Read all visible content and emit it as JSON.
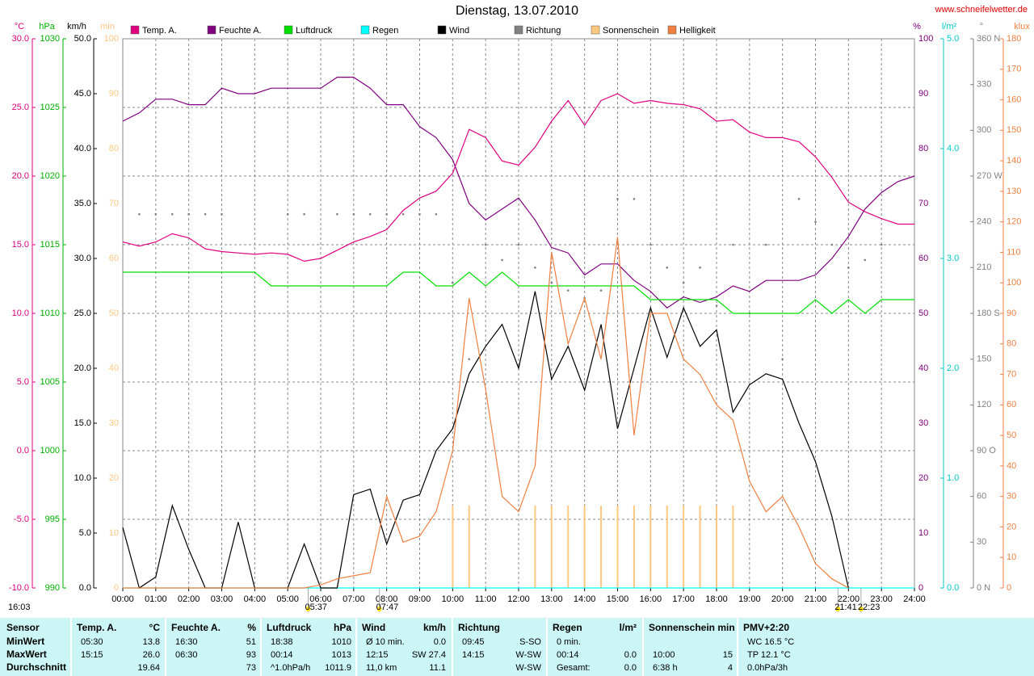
{
  "chart_data": {
    "type": "line",
    "title": "Dienstag, 13.07.2010",
    "site": "www.schneifelwetter.de",
    "xlim": [
      0,
      24
    ],
    "xticks": [
      {
        "value": 0,
        "label": "00:00"
      },
      {
        "value": 1,
        "label": "01:00"
      },
      {
        "value": 2,
        "label": "02:00"
      },
      {
        "value": 3,
        "label": "03:00"
      },
      {
        "value": 4,
        "label": "04:00"
      },
      {
        "value": 5,
        "label": "05:00"
      },
      {
        "value": 6,
        "label": "06:00"
      },
      {
        "value": 7,
        "label": "07:00"
      },
      {
        "value": 8,
        "label": "08:00"
      },
      {
        "value": 9,
        "label": "09:00"
      },
      {
        "value": 10,
        "label": "10:00"
      },
      {
        "value": 11,
        "label": "11:00"
      },
      {
        "value": 12,
        "label": "12:00"
      },
      {
        "value": 13,
        "label": "13:00"
      },
      {
        "value": 14,
        "label": "14:00"
      },
      {
        "value": 15,
        "label": "15:00"
      },
      {
        "value": 16,
        "label": "16:00"
      },
      {
        "value": 17,
        "label": "17:00"
      },
      {
        "value": 18,
        "label": "18:00"
      },
      {
        "value": 19,
        "label": "19:00"
      },
      {
        "value": 20,
        "label": "20:00"
      },
      {
        "value": 21,
        "label": "21:00"
      },
      {
        "value": 22,
        "label": "22:00"
      },
      {
        "value": 23,
        "label": "23:00"
      },
      {
        "value": 24,
        "label": "24:00"
      }
    ],
    "grid": true,
    "axes": [
      {
        "unit": "°C",
        "side": "left",
        "color": "#e0007f",
        "lim": [
          -10,
          30
        ],
        "ticks": [
          {
            "value": -10,
            "label": "-10.0"
          },
          {
            "value": -5,
            "label": "-5.0"
          },
          {
            "value": 0,
            "label": "0.0"
          },
          {
            "value": 5,
            "label": "5.0"
          },
          {
            "value": 10,
            "label": "10.0"
          },
          {
            "value": 15,
            "label": "15.0"
          },
          {
            "value": 20,
            "label": "20.0"
          },
          {
            "value": 25,
            "label": "25.0"
          },
          {
            "value": 30,
            "label": "30.0"
          }
        ]
      },
      {
        "unit": "hPa",
        "side": "left",
        "color": "#00b000",
        "lim": [
          990,
          1030
        ],
        "ticks": [
          990,
          995,
          1000,
          1005,
          1010,
          1015,
          1020,
          1025,
          1030
        ]
      },
      {
        "unit": "km/h",
        "side": "left",
        "color": "#000000",
        "lim": [
          0,
          50
        ],
        "ticks": [
          {
            "value": 0,
            "label": "0.0"
          },
          {
            "value": 5,
            "label": "5.0"
          },
          {
            "value": 10,
            "label": "10.0"
          },
          {
            "value": 15,
            "label": "15.0"
          },
          {
            "value": 20,
            "label": "20.0"
          },
          {
            "value": 25,
            "label": "25.0"
          },
          {
            "value": 30,
            "label": "30.0"
          },
          {
            "value": 35,
            "label": "35.0"
          },
          {
            "value": 40,
            "label": "40.0"
          },
          {
            "value": 45,
            "label": "45.0"
          },
          {
            "value": 50,
            "label": "50.0"
          }
        ]
      },
      {
        "unit": "min",
        "side": "left",
        "color": "#ffc880",
        "lim": [
          0,
          100
        ],
        "ticks": [
          0,
          10,
          20,
          30,
          40,
          50,
          60,
          70,
          80,
          90,
          100
        ]
      },
      {
        "unit": "%",
        "side": "right",
        "color": "#800080",
        "lim": [
          0,
          100
        ],
        "ticks": [
          0,
          10,
          20,
          30,
          40,
          50,
          60,
          70,
          80,
          90,
          100
        ]
      },
      {
        "unit": "l/m²",
        "side": "right",
        "color": "#00c8c8",
        "lim": [
          0,
          5
        ],
        "ticks": [
          {
            "value": 0,
            "label": "0.0"
          },
          {
            "value": 1,
            "label": "1.0"
          },
          {
            "value": 2,
            "label": "2.0"
          },
          {
            "value": 3,
            "label": "3.0"
          },
          {
            "value": 4,
            "label": "4.0"
          },
          {
            "value": 5,
            "label": "5.0"
          }
        ]
      },
      {
        "unit": "°",
        "side": "right",
        "color": "#808080",
        "lim": [
          0,
          360
        ],
        "ticks": [
          {
            "value": 0,
            "label": "0   N"
          },
          30,
          60,
          {
            "value": 90,
            "label": "90   O"
          },
          120,
          150,
          {
            "value": 180,
            "label": "180 S"
          },
          210,
          240,
          {
            "value": 270,
            "label": "270 W"
          },
          300,
          330,
          {
            "value": 360,
            "label": "360 N"
          }
        ]
      },
      {
        "unit": "klux",
        "side": "right",
        "color": "#f08040",
        "lim": [
          0,
          180
        ],
        "ticks": [
          0,
          10,
          20,
          30,
          40,
          50,
          60,
          70,
          80,
          90,
          100,
          110,
          120,
          130,
          140,
          150,
          160,
          170,
          180
        ]
      }
    ],
    "x": [
      0,
      0.5,
      1,
      1.5,
      2,
      2.5,
      3,
      3.5,
      4,
      4.5,
      5,
      5.5,
      6,
      6.5,
      7,
      7.5,
      8,
      8.5,
      9,
      9.5,
      10,
      10.5,
      11,
      11.5,
      12,
      12.5,
      13,
      13.5,
      14,
      14.5,
      15,
      15.5,
      16,
      16.5,
      17,
      17.5,
      18,
      18.5,
      19,
      19.5,
      20,
      20.5,
      21,
      21.5,
      22,
      22.5,
      23,
      23.5,
      24
    ],
    "series": [
      {
        "name": "Temp. A.",
        "color": "#e0007f",
        "style": "line",
        "axis": 0,
        "values": [
          15.2,
          14.9,
          15.2,
          15.8,
          15.5,
          14.7,
          14.5,
          14.4,
          14.3,
          14.4,
          14.3,
          13.8,
          14.0,
          14.6,
          15.2,
          15.6,
          16.1,
          17.5,
          18.4,
          18.9,
          20.2,
          23.4,
          22.8,
          21.1,
          20.8,
          22.1,
          24.0,
          25.5,
          23.7,
          25.5,
          26.0,
          25.3,
          25.5,
          25.3,
          25.2,
          24.9,
          24.0,
          24.1,
          23.2,
          22.8,
          22.8,
          22.5,
          21.4,
          19.9,
          18.1,
          17.4,
          16.9,
          16.5,
          16.5
        ]
      },
      {
        "name": "Feuchte A.",
        "color": "#800080",
        "style": "line",
        "axis": 4,
        "values": [
          85,
          86.5,
          89,
          89,
          88,
          88,
          91,
          90,
          90,
          91,
          91,
          91,
          91,
          93,
          93,
          91,
          88,
          88,
          84,
          82,
          78,
          70,
          67,
          69,
          71,
          67,
          62,
          61,
          57,
          59,
          59,
          56,
          54,
          51,
          53,
          52,
          53,
          55,
          54,
          56,
          56,
          56,
          57,
          60,
          64,
          69,
          72,
          74,
          75
        ]
      },
      {
        "name": "Luftdruck",
        "color": "#00e000",
        "style": "line",
        "axis": 1,
        "values": [
          1013,
          1013,
          1013,
          1013,
          1013,
          1013,
          1013,
          1013,
          1013,
          1012,
          1012,
          1012,
          1012,
          1012,
          1012,
          1012,
          1012,
          1013,
          1013,
          1012,
          1012,
          1013,
          1012,
          1013,
          1012,
          1012,
          1012,
          1012,
          1012,
          1012,
          1012,
          1012,
          1011,
          1011,
          1011,
          1011,
          1011,
          1010,
          1010,
          1010,
          1010,
          1010,
          1011,
          1010,
          1011,
          1010,
          1011,
          1011,
          1011
        ]
      },
      {
        "name": "Regen",
        "color": "#00ffff",
        "style": "line",
        "axis": 5,
        "values": [
          0,
          0,
          0,
          0,
          0,
          0,
          0,
          0,
          0,
          0,
          0,
          0,
          0,
          0,
          0,
          0,
          0,
          0,
          0,
          0,
          0,
          0,
          0,
          0,
          0,
          0,
          0,
          0,
          0,
          0,
          0,
          0,
          0,
          0,
          0,
          0,
          0,
          0,
          0,
          0,
          0,
          0,
          0,
          0,
          0,
          0,
          0,
          0,
          0
        ]
      },
      {
        "name": "Wind",
        "color": "#000000",
        "style": "line",
        "axis": 2,
        "values": [
          5.5,
          0,
          1,
          7.5,
          3.5,
          0,
          0,
          6,
          0,
          0,
          0,
          4,
          0,
          0,
          8.5,
          9,
          4,
          8,
          8.5,
          12.5,
          14.5,
          19.5,
          22,
          24,
          20,
          27,
          19,
          22,
          18,
          24,
          14.5,
          20,
          25.5,
          21,
          25.5,
          22,
          23.5,
          16,
          18.5,
          19.5,
          19,
          15,
          11.5,
          6.5,
          0,
          null,
          null,
          null,
          null
        ]
      },
      {
        "name": "Richtung",
        "color": "#808080",
        "style": "dot",
        "axis": 6,
        "values": [
          null,
          245,
          245,
          245,
          245,
          245,
          245,
          null,
          null,
          null,
          245,
          245,
          null,
          245,
          245,
          245,
          245,
          245,
          245,
          245,
          200,
          150,
          225,
          215,
          225,
          210,
          200,
          195,
          190,
          195,
          255,
          255,
          225,
          210,
          200,
          210,
          185,
          225,
          180,
          225,
          150,
          255,
          240,
          225,
          210,
          215,
          225,
          null,
          null
        ]
      },
      {
        "name": "Sonnenschein",
        "color": "#ffc880",
        "style": "bar",
        "axis": 3,
        "values": [
          0,
          0,
          0,
          0,
          0,
          0,
          0,
          0,
          0,
          0,
          0,
          0,
          0,
          0,
          0,
          0,
          0,
          0,
          0,
          0,
          15,
          15,
          0,
          0,
          0,
          15,
          15,
          15,
          15,
          15,
          15,
          15,
          15,
          15,
          15,
          15,
          15,
          15,
          0,
          0,
          0,
          0,
          0,
          0,
          0,
          0,
          0,
          0,
          0
        ]
      },
      {
        "name": "Helligkeit",
        "color": "#f08040",
        "style": "line",
        "axis": 7,
        "values": [
          0,
          0,
          0,
          0,
          0,
          0,
          0,
          0,
          0,
          0,
          0,
          0,
          1,
          3,
          4,
          5,
          30,
          15,
          17,
          25,
          45,
          95,
          65,
          30,
          25,
          40,
          110,
          80,
          95,
          75,
          115,
          50,
          90,
          90,
          75,
          70,
          60,
          55,
          35,
          25,
          30,
          20,
          8,
          3,
          0,
          null,
          null,
          null,
          null
        ]
      }
    ],
    "annotations": [
      {
        "label": "16:03"
      },
      {
        "x": 5.62,
        "label": "05:37"
      },
      {
        "x": 7.78,
        "label": "07:47"
      },
      {
        "x": 21.68,
        "label": "21:41"
      },
      {
        "x": 22.38,
        "label": "22:23"
      }
    ]
  },
  "table": {
    "header": [
      "Sensor",
      "Temp. A.",
      "°C",
      "Feuchte A.",
      "%",
      "Luftdruck",
      "hPa",
      "Wind",
      "km/h",
      "Richtung",
      null,
      "Regen",
      "l/m²",
      "Sonnenschein min",
      null,
      "PMV+2:20"
    ],
    "rows": [
      [
        "MinWert",
        "05:30",
        "13.8",
        "16:30",
        "51",
        "18:38",
        "1010",
        "Ø 10 min.",
        "0.0",
        "09:45",
        "S-SO",
        "0 min.",
        null,
        null,
        null,
        "WC 16.5 °C"
      ],
      [
        "MaxWert",
        "15:15",
        "26.0",
        "06:30",
        "93",
        "00:14",
        "1013",
        "12:15",
        "SW 27.4",
        "14:15",
        "W-SW",
        "00:14",
        "0.0",
        "10:00",
        "15",
        "TP 12.1 °C"
      ],
      [
        "Durchschnitt",
        null,
        "19.64",
        null,
        "73",
        "^1.0hPa/h",
        "1011.9",
        "11,0 km",
        "11.1",
        null,
        "W-SW",
        "Gesamt:",
        "0.0",
        "6:38 h",
        "4",
        "0.0hPa/3h"
      ]
    ]
  }
}
